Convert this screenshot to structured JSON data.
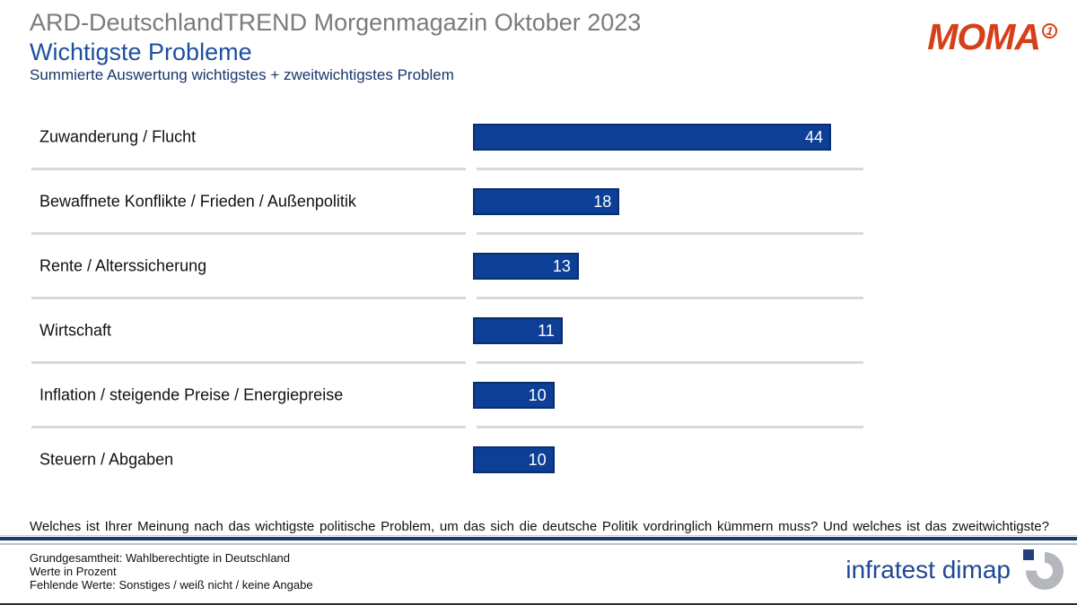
{
  "header": {
    "kicker": "ARD-DeutschlandTREND Morgenmagazin Oktober 2023",
    "title": "Wichtigste Probleme",
    "subtitle": "Summierte Auswertung wichtigstes + zweitwichtigstes Problem"
  },
  "logos": {
    "moma": "MOMA",
    "moma_badge": "1",
    "infratest": "infratest dimap"
  },
  "chart_data": {
    "type": "bar",
    "orientation": "horizontal",
    "title": "Wichtigste Probleme",
    "categories": [
      "Zuwanderung / Flucht",
      "Bewaffnete Konflikte / Frieden / Außenpolitik",
      "Rente / Alterssicherung",
      "Wirtschaft",
      "Inflation / steigende Preise / Energiepreise",
      "Steuern / Abgaben"
    ],
    "values": [
      44,
      18,
      13,
      11,
      10,
      10
    ],
    "unit": "percent",
    "value_labels_inside_bars": true,
    "xlim": [
      0,
      48
    ],
    "grid": false,
    "bar_color": "#0d3f96",
    "bar_border_color": "#092e6e",
    "value_label_color": "#ffffff"
  },
  "question": "Welches ist Ihrer Meinung nach das wichtigste politische Problem, um das sich die deutsche Politik vordringlich kümmern muss? Und welches ist das zweitwichtigste?",
  "footer": {
    "lines": [
      "Grundgesamtheit: Wahlberechtigte in Deutschland",
      "Werte in Prozent",
      "Fehlende Werte: Sonstiges / weiß nicht / keine Angabe"
    ]
  }
}
